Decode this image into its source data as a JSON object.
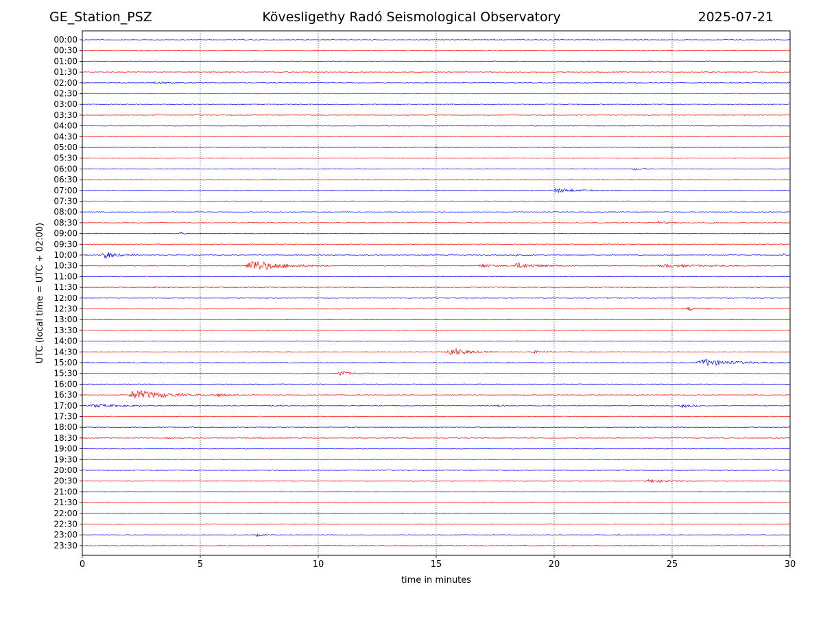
{
  "header": {
    "station": "GE_Station_PSZ",
    "observatory": "Kövesligethy Radó Seismological Observatory",
    "date": "2025-07-21"
  },
  "chart_data": {
    "type": "line",
    "title": "Kövesligethy Radó Seismological Observatory",
    "xlabel": "time in minutes",
    "ylabel": "UTC (local time = UTC + 02:00)",
    "xlim": [
      0,
      30
    ],
    "xticks": [
      "0",
      "5",
      "10",
      "15",
      "20",
      "25",
      "30"
    ],
    "grid": "vertical dotted lines at each 5 minutes",
    "colors": {
      "even_row": "#0000ff",
      "odd_row": "#ff0000",
      "grid": "#000000"
    },
    "rows": [
      "00:00",
      "00:30",
      "01:00",
      "01:30",
      "02:00",
      "02:30",
      "03:00",
      "03:30",
      "04:00",
      "04:30",
      "05:00",
      "05:30",
      "06:00",
      "06:30",
      "07:00",
      "07:30",
      "08:00",
      "08:30",
      "09:00",
      "09:30",
      "10:00",
      "10:30",
      "11:00",
      "11:30",
      "12:00",
      "12:30",
      "13:00",
      "13:30",
      "14:00",
      "14:30",
      "15:00",
      "15:30",
      "16:00",
      "16:30",
      "17:00",
      "17:30",
      "18:00",
      "18:30",
      "19:00",
      "19:30",
      "20:00",
      "20:30",
      "21:00",
      "21:30",
      "22:00",
      "22:30",
      "23:00",
      "23:30"
    ],
    "events": [
      {
        "row": "02:00",
        "start_min": 2.9,
        "duration_min": 1.9,
        "amplitude": 0.25
      },
      {
        "row": "06:00",
        "start_min": 23.3,
        "duration_min": 1.0,
        "amplitude": 0.3
      },
      {
        "row": "07:00",
        "start_min": 19.9,
        "duration_min": 2.6,
        "amplitude": 0.55
      },
      {
        "row": "08:30",
        "start_min": 24.2,
        "duration_min": 1.5,
        "amplitude": 0.35
      },
      {
        "row": "08:30",
        "start_min": 26.5,
        "duration_min": 1.2,
        "amplitude": 0.15
      },
      {
        "row": "09:00",
        "start_min": 4.1,
        "duration_min": 0.5,
        "amplitude": 0.25
      },
      {
        "row": "10:00",
        "start_min": 0.8,
        "duration_min": 1.5,
        "amplitude": 1.0
      },
      {
        "row": "10:00",
        "start_min": 18.3,
        "duration_min": 1.0,
        "amplitude": 0.2
      },
      {
        "row": "10:00",
        "start_min": 29.7,
        "duration_min": 0.3,
        "amplitude": 0.35
      },
      {
        "row": "10:30",
        "start_min": 6.9,
        "duration_min": 3.6,
        "amplitude": 1.4
      },
      {
        "row": "10:30",
        "start_min": 16.8,
        "duration_min": 1.5,
        "amplitude": 0.5
      },
      {
        "row": "10:30",
        "start_min": 18.2,
        "duration_min": 2.6,
        "amplitude": 0.75
      },
      {
        "row": "10:30",
        "start_min": 24.3,
        "duration_min": 5.2,
        "amplitude": 0.35
      },
      {
        "row": "11:30",
        "start_min": 3.0,
        "duration_min": 1.0,
        "amplitude": 0.15
      },
      {
        "row": "11:30",
        "start_min": 7.5,
        "duration_min": 1.0,
        "amplitude": 0.15
      },
      {
        "row": "12:30",
        "start_min": 25.6,
        "duration_min": 1.5,
        "amplitude": 0.45
      },
      {
        "row": "14:30",
        "start_min": 15.4,
        "duration_min": 2.2,
        "amplitude": 1.1
      },
      {
        "row": "14:30",
        "start_min": 18.9,
        "duration_min": 1.4,
        "amplitude": 0.35
      },
      {
        "row": "15:00",
        "start_min": 26.0,
        "duration_min": 4.0,
        "amplitude": 0.85
      },
      {
        "row": "15:30",
        "start_min": 10.8,
        "duration_min": 1.5,
        "amplitude": 0.6
      },
      {
        "row": "16:30",
        "start_min": 1.9,
        "duration_min": 4.2,
        "amplitude": 1.2
      },
      {
        "row": "16:30",
        "start_min": 5.6,
        "duration_min": 1.2,
        "amplitude": 0.35
      },
      {
        "row": "17:00",
        "start_min": 0.2,
        "duration_min": 3.8,
        "amplitude": 0.4
      },
      {
        "row": "17:00",
        "start_min": 8.0,
        "duration_min": 0.8,
        "amplitude": 0.25
      },
      {
        "row": "17:00",
        "start_min": 17.5,
        "duration_min": 0.8,
        "amplitude": 0.25
      },
      {
        "row": "17:00",
        "start_min": 25.3,
        "duration_min": 1.3,
        "amplitude": 0.45
      },
      {
        "row": "18:30",
        "start_min": 3.5,
        "duration_min": 1.2,
        "amplitude": 0.15
      },
      {
        "row": "20:30",
        "start_min": 23.8,
        "duration_min": 2.9,
        "amplitude": 0.35
      },
      {
        "row": "23:00",
        "start_min": 7.3,
        "duration_min": 0.9,
        "amplitude": 0.35
      }
    ]
  }
}
